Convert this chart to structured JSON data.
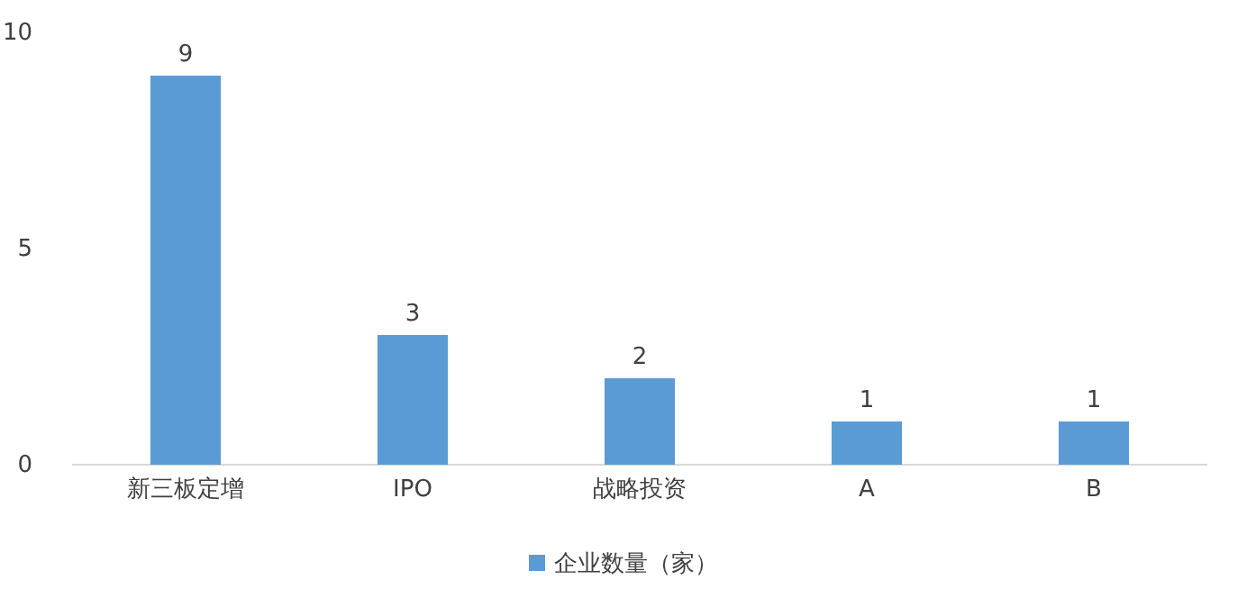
{
  "chart_data": {
    "type": "bar",
    "categories": [
      "新三板定增",
      "IPO",
      "战略投资",
      "A",
      "B"
    ],
    "series": [
      {
        "name": "企业数量（家）",
        "color": "#5b9bd5",
        "values": [
          9,
          3,
          2,
          1,
          1
        ]
      }
    ],
    "ylim": [
      0,
      10
    ],
    "yticks": [
      0,
      5,
      10
    ],
    "data_labels": true,
    "grid": false,
    "legend": "bottom"
  }
}
